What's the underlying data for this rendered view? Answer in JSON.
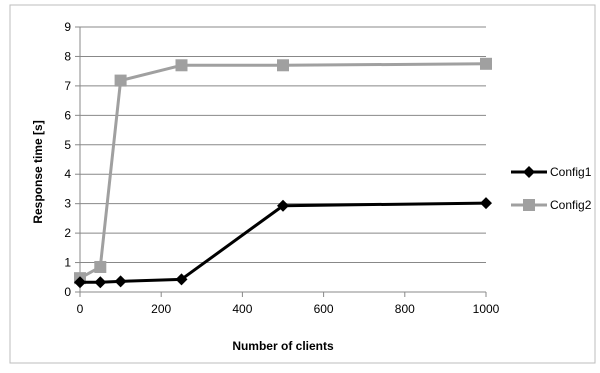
{
  "chart_data": {
    "type": "line",
    "title": "",
    "xlabel": "Number of clients",
    "ylabel": "Response time [s]",
    "xlim": [
      0,
      1000
    ],
    "ylim": [
      0,
      9
    ],
    "xticks": [
      0,
      200,
      400,
      600,
      800,
      1000
    ],
    "yticks": [
      0,
      1,
      2,
      3,
      4,
      5,
      6,
      7,
      8,
      9
    ],
    "grid": "horizontal",
    "legend_position": "right",
    "series": [
      {
        "name": "Config1",
        "color": "#000000",
        "marker": "diamond",
        "x": [
          0,
          50,
          100,
          250,
          500,
          1000
        ],
        "y": [
          0.33,
          0.33,
          0.36,
          0.43,
          2.93,
          3.02
        ]
      },
      {
        "name": "Config2",
        "color": "#a0a0a0",
        "marker": "square",
        "x": [
          0,
          50,
          100,
          250,
          500,
          1000
        ],
        "y": [
          0.47,
          0.85,
          7.18,
          7.7,
          7.7,
          7.75
        ]
      }
    ]
  }
}
